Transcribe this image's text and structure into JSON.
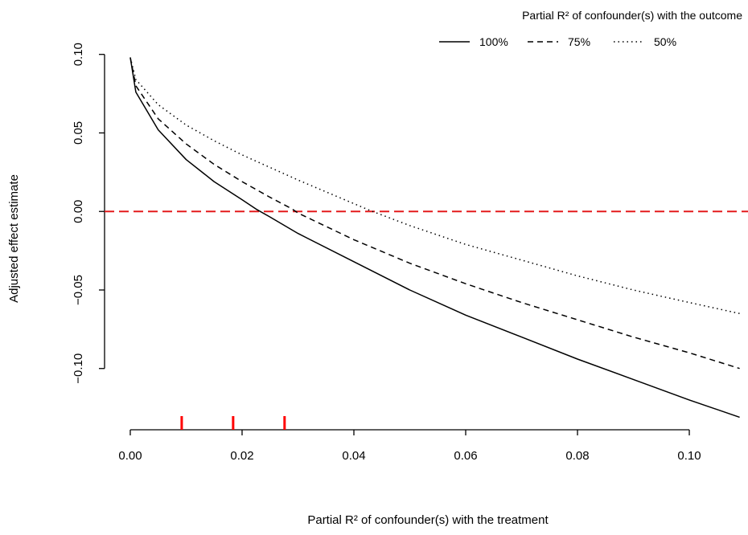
{
  "chart_data": {
    "type": "line",
    "title": "",
    "xlabel": "Partial R² of confounder(s) with the treatment",
    "ylabel": "Adjusted effect estimate",
    "xlim": [
      -0.0046,
      0.1105
    ],
    "ylim": [
      -0.139,
      0.1065
    ],
    "x_ticks": [
      0.0,
      0.02,
      0.04,
      0.06,
      0.08,
      0.1
    ],
    "x_tick_labels": [
      "0.00",
      "0.02",
      "0.04",
      "0.06",
      "0.08",
      "0.10"
    ],
    "y_ticks": [
      -0.1,
      -0.05,
      0.0,
      0.05,
      0.1
    ],
    "y_tick_labels": [
      "−0.10",
      "−0.05",
      "0.00",
      "0.05",
      "0.10"
    ],
    "grid": false,
    "legend": {
      "title": "Partial R² of confounder(s) with the outcome",
      "placement": "top-right",
      "orientation": "horizontal"
    },
    "series": [
      {
        "name": "100%",
        "line_style": "solid",
        "x": [
          0.0,
          0.001,
          0.005,
          0.01,
          0.015,
          0.02,
          0.0225,
          0.025,
          0.03,
          0.04,
          0.05,
          0.06,
          0.07,
          0.08,
          0.09,
          0.1,
          0.109
        ],
        "y": [
          0.098,
          0.076,
          0.052,
          0.033,
          0.019,
          0.0075,
          0.0015,
          -0.0035,
          -0.014,
          -0.032,
          -0.05,
          -0.066,
          -0.08,
          -0.094,
          -0.107,
          -0.12,
          -0.131
        ]
      },
      {
        "name": "75%",
        "line_style": "dashed",
        "x": [
          0.0,
          0.001,
          0.005,
          0.01,
          0.015,
          0.02,
          0.025,
          0.029,
          0.03,
          0.04,
          0.05,
          0.06,
          0.07,
          0.08,
          0.09,
          0.1,
          0.109
        ],
        "y": [
          0.098,
          0.08,
          0.059,
          0.043,
          0.03,
          0.019,
          0.009,
          0.0015,
          -0.001,
          -0.018,
          -0.033,
          -0.046,
          -0.058,
          -0.069,
          -0.08,
          -0.09,
          -0.1
        ]
      },
      {
        "name": "50%",
        "line_style": "dotted",
        "x": [
          0.0,
          0.001,
          0.005,
          0.01,
          0.015,
          0.02,
          0.03,
          0.04,
          0.043,
          0.05,
          0.06,
          0.07,
          0.08,
          0.09,
          0.1,
          0.109
        ],
        "y": [
          0.098,
          0.084,
          0.068,
          0.055,
          0.045,
          0.036,
          0.02,
          0.005,
          0.0005,
          -0.009,
          -0.021,
          -0.031,
          -0.041,
          -0.05,
          -0.058,
          -0.065
        ]
      }
    ],
    "reference_lines": [
      {
        "axis": "y",
        "value": 0.0,
        "color": "#e41a1c",
        "style": "dashed"
      }
    ],
    "rug_marks": {
      "x": [
        0.0092,
        0.0184,
        0.0276
      ],
      "color": "#ff0000"
    }
  }
}
